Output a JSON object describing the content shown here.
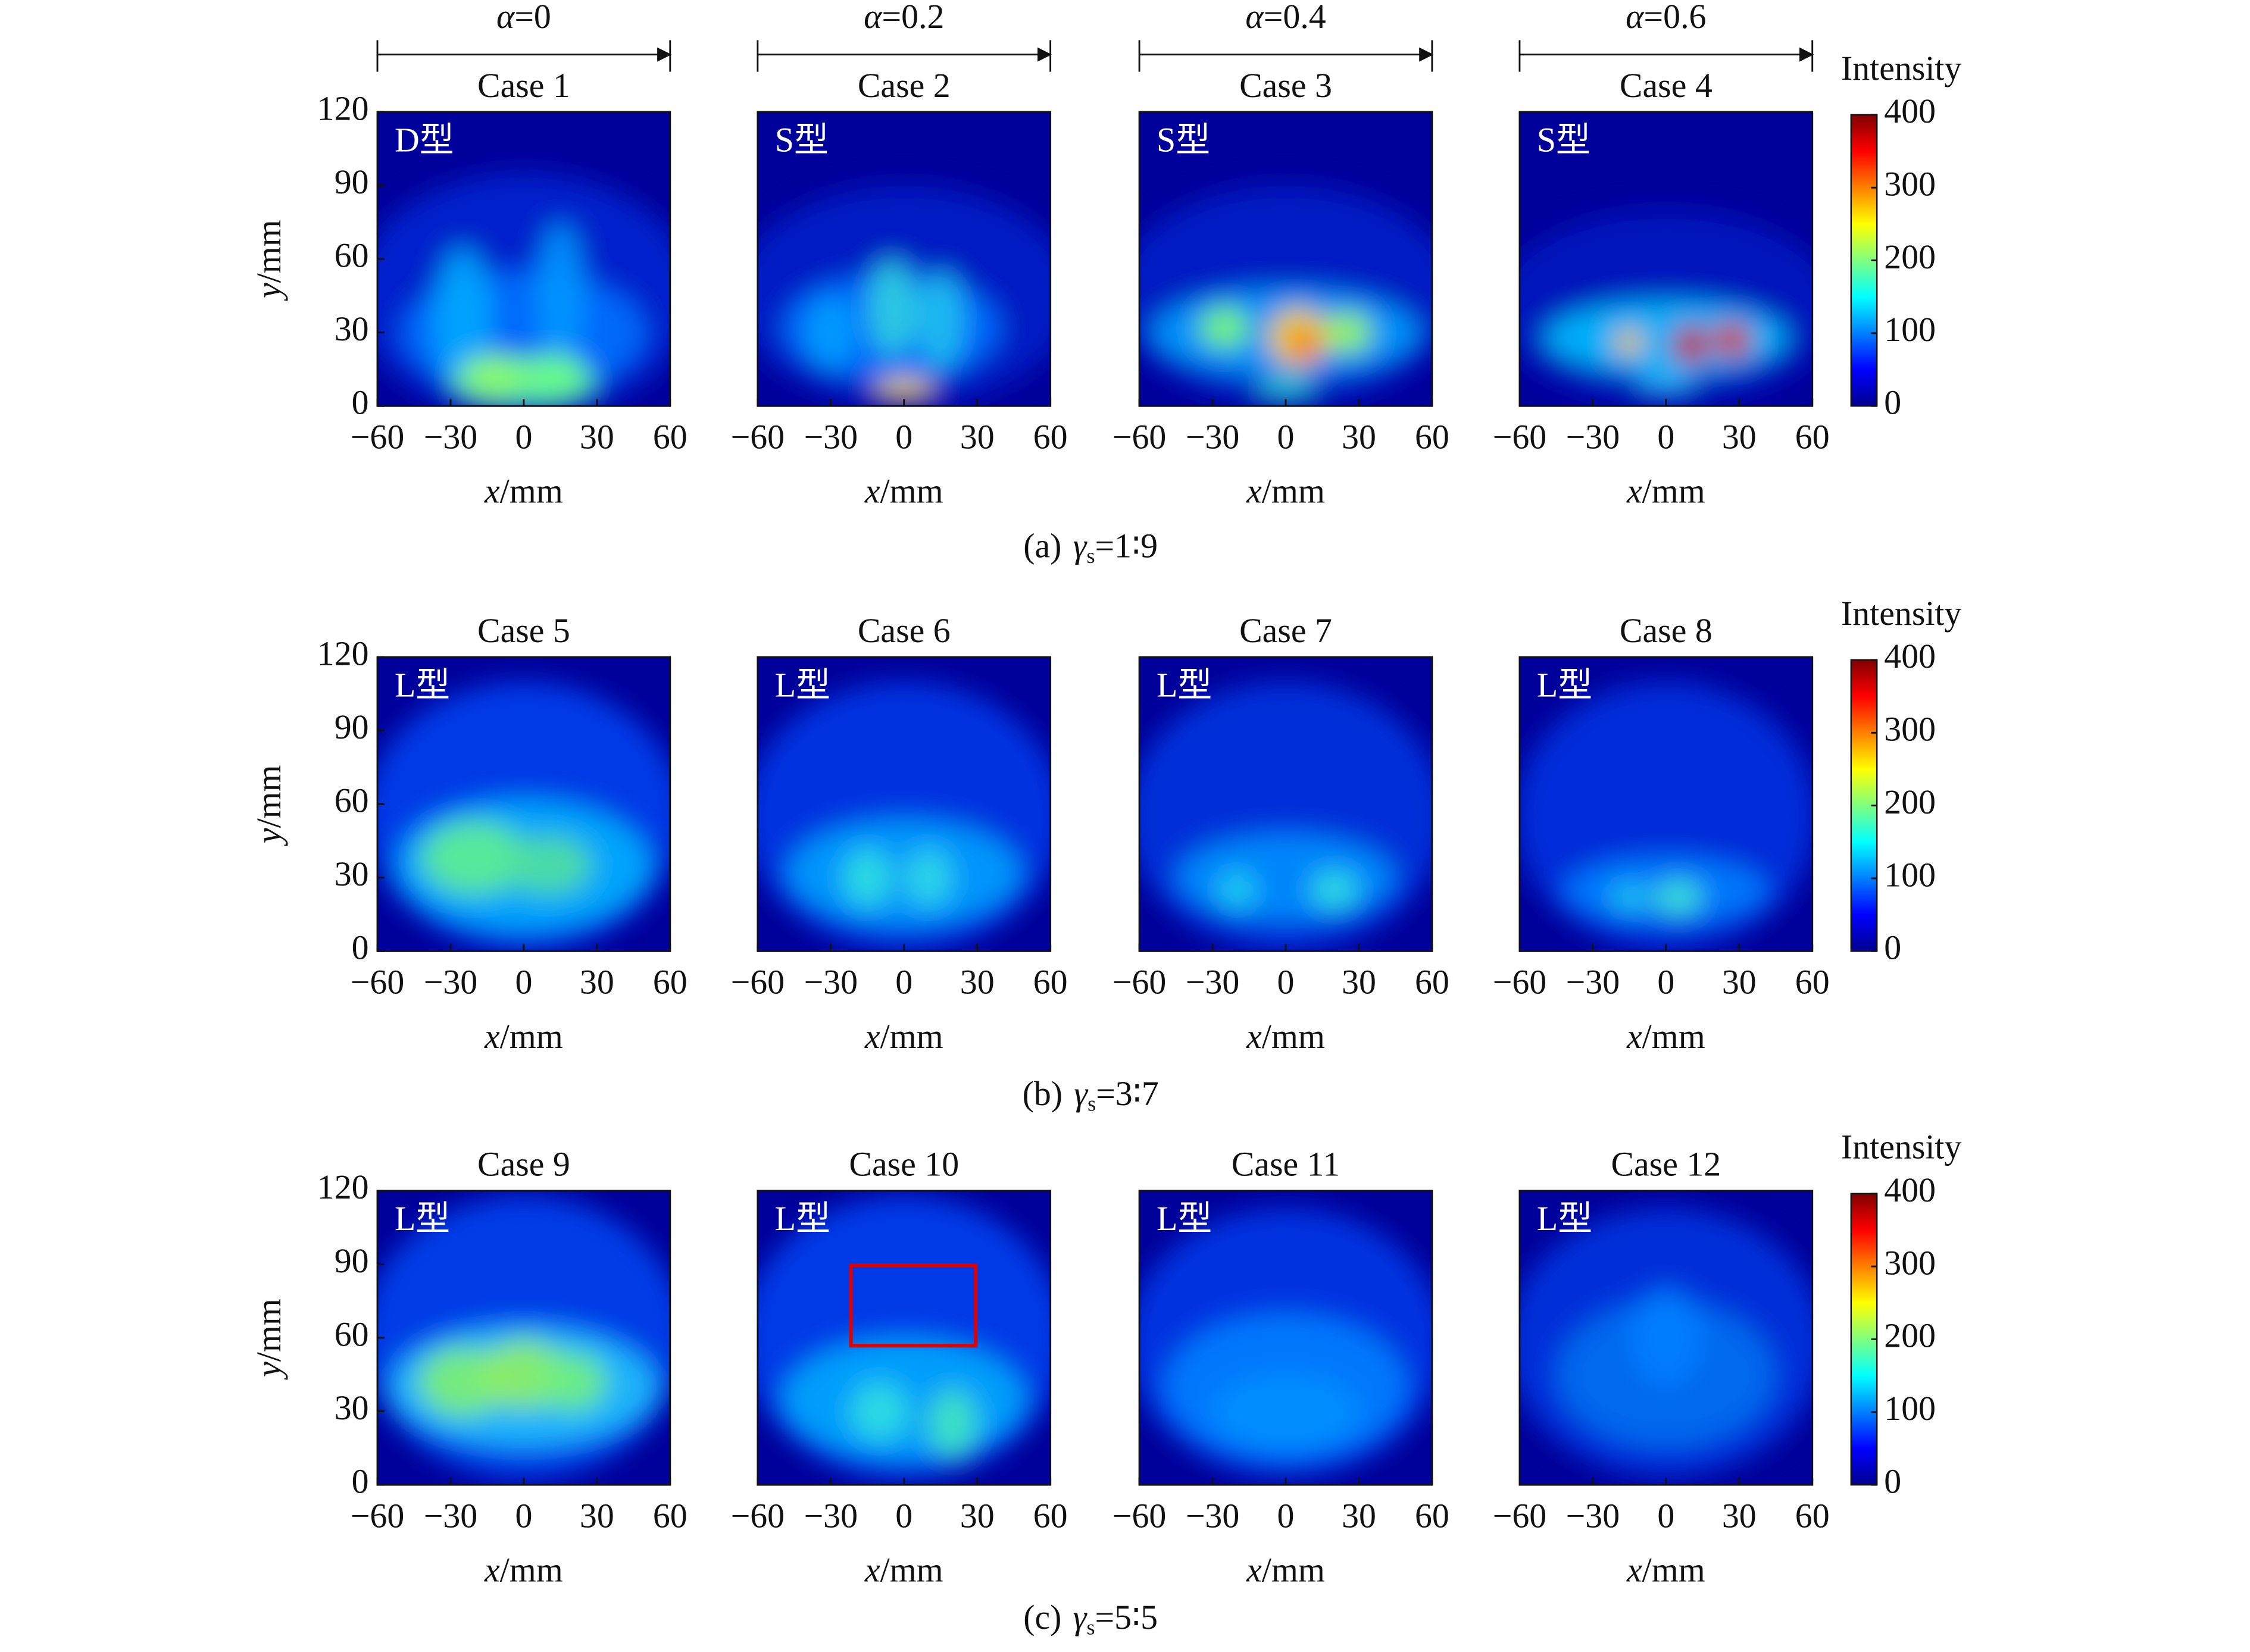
{
  "axes": {
    "xlabel": {
      "var": "x",
      "unit": "/mm"
    },
    "ylabel": {
      "var": "y",
      "unit": "/mm"
    },
    "xlim": [
      -60,
      60
    ],
    "ylim": [
      0,
      120
    ],
    "xticks": [
      {
        "value": -60,
        "label": "−60"
      },
      {
        "value": -30,
        "label": "−30"
      },
      0,
      30,
      60
    ],
    "yticks": [
      0,
      30,
      60,
      90,
      120
    ]
  },
  "colorbar": {
    "title": "Intensity",
    "lim": [
      0,
      400
    ],
    "ticks": [
      0,
      100,
      200,
      300,
      400
    ]
  },
  "alpha_labels": [
    {
      "symbol": "α",
      "value": "=0"
    },
    {
      "symbol": "α",
      "value": "=0.2"
    },
    {
      "symbol": "α",
      "value": "=0.4"
    },
    {
      "symbol": "α",
      "value": "=0.6"
    }
  ],
  "rows": [
    {
      "caption": {
        "label": "(a)",
        "symbol": "γ",
        "subscript": "s",
        "ratio": "=1∶9"
      },
      "panels": [
        {
          "title": "Case 1",
          "pattern": "D型"
        },
        {
          "title": "Case 2",
          "pattern": "S型"
        },
        {
          "title": "Case 3",
          "pattern": "S型"
        },
        {
          "title": "Case 4",
          "pattern": "S型"
        }
      ]
    },
    {
      "caption": {
        "label": "(b)",
        "symbol": "γ",
        "subscript": "s",
        "ratio": "=3∶7"
      },
      "panels": [
        {
          "title": "Case 5",
          "pattern": "L型"
        },
        {
          "title": "Case 6",
          "pattern": "L型"
        },
        {
          "title": "Case 7",
          "pattern": "L型"
        },
        {
          "title": "Case 8",
          "pattern": "L型"
        }
      ]
    },
    {
      "caption": {
        "label": "(c)",
        "symbol": "γ",
        "subscript": "s",
        "ratio": "=5∶5"
      },
      "panels": [
        {
          "title": "Case 9",
          "pattern": "L型"
        },
        {
          "title": "Case 10",
          "pattern": "L型"
        },
        {
          "title": "Case 11",
          "pattern": "L型"
        },
        {
          "title": "Case 12",
          "pattern": "L型"
        }
      ]
    }
  ]
}
